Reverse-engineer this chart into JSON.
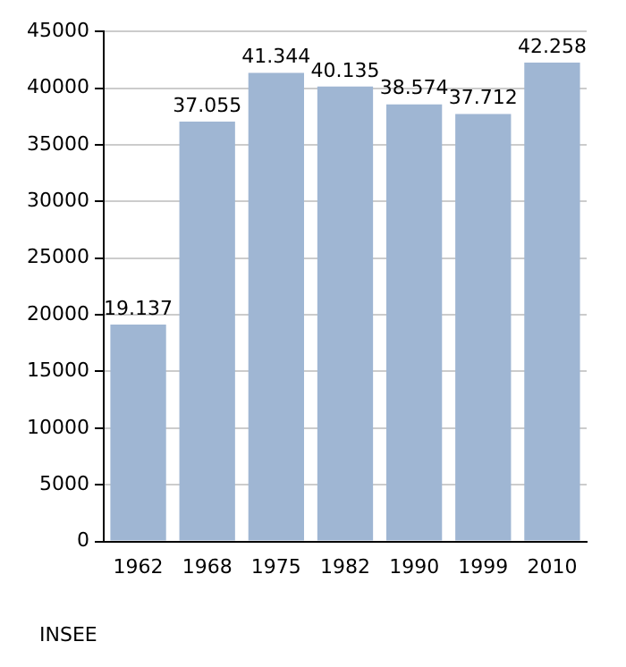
{
  "chart_data": {
    "type": "bar",
    "categories": [
      "1962",
      "1968",
      "1975",
      "1982",
      "1990",
      "1999",
      "2010"
    ],
    "values": [
      19137,
      37055,
      41344,
      40135,
      38574,
      37712,
      42258
    ],
    "value_labels": [
      "19.137",
      "37.055",
      "41.344",
      "40.135",
      "38.574",
      "37.712",
      "42.258"
    ],
    "color": "#9fb6d3",
    "ylim": [
      0,
      45000
    ],
    "yticks": [
      0,
      5000,
      10000,
      15000,
      20000,
      25000,
      30000,
      35000,
      40000,
      45000
    ],
    "grid": "y",
    "annotations": [
      "INSEE"
    ]
  }
}
